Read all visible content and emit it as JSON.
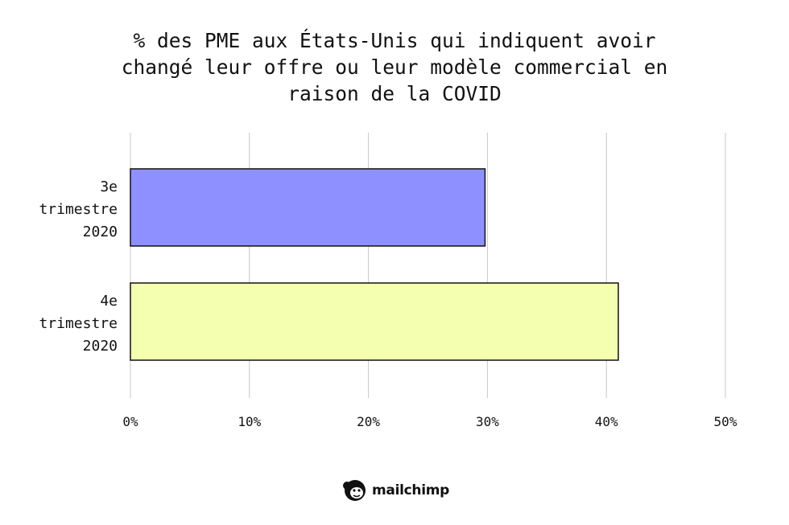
{
  "title_lines": [
    "% des PME aux États-Unis qui indiquent avoir",
    "changé leur offre ou leur modèle commercial en",
    "raison de la COVID"
  ],
  "brand": {
    "name": "mailchimp"
  },
  "chart_data": {
    "type": "bar",
    "orientation": "horizontal",
    "title": "% des PME aux États-Unis qui indiquent avoir changé leur offre ou leur modèle commercial en raison de la COVID",
    "categories": [
      "3e trimestre 2020",
      "4e trimestre 2020"
    ],
    "category_lines": [
      [
        "3e",
        "trimestre",
        "2020"
      ],
      [
        "4e",
        "trimestre",
        "2020"
      ]
    ],
    "values": [
      29.8,
      41
    ],
    "colors": [
      "#8f90ff",
      "#f4ffb0"
    ],
    "xlim": [
      0,
      50
    ],
    "xticks": [
      0,
      10,
      20,
      30,
      40,
      50
    ],
    "xtick_labels": [
      "0%",
      "10%",
      "20%",
      "30%",
      "40%",
      "50%"
    ],
    "xlabel": "",
    "ylabel": "",
    "grid": true,
    "legend": "none"
  }
}
